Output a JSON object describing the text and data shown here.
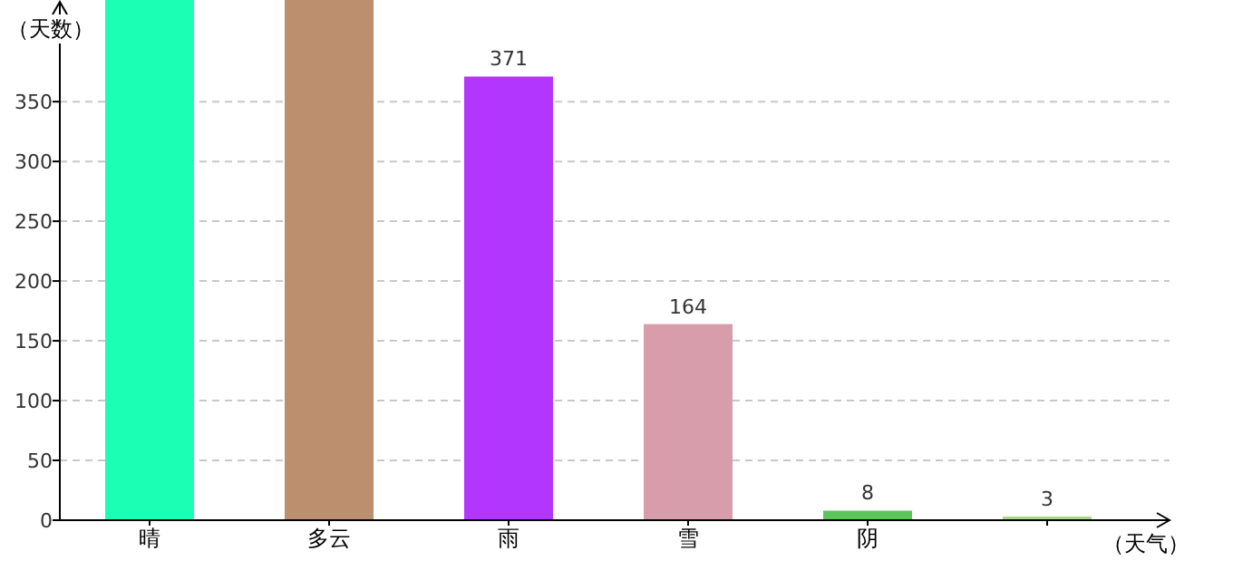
{
  "chart_data": {
    "type": "bar",
    "xlabel": "（天气）",
    "ylabel": "（天数）",
    "categories": [
      "晴",
      "多云",
      "雨",
      "雪",
      "阴",
      null
    ],
    "values": [
      435,
      435,
      371,
      164,
      8,
      3
    ],
    "value_labels": [
      null,
      null,
      "371",
      "164",
      "8",
      "3"
    ],
    "colors": [
      "#1affb4",
      "#bc8f6f",
      "#b336ff",
      "#d89dab",
      "#5cc65c",
      "#a8d88a"
    ],
    "ylim": [
      0,
      435
    ],
    "yticks": [
      0,
      50,
      100,
      150,
      200,
      250,
      300,
      350
    ],
    "grid": "y"
  }
}
